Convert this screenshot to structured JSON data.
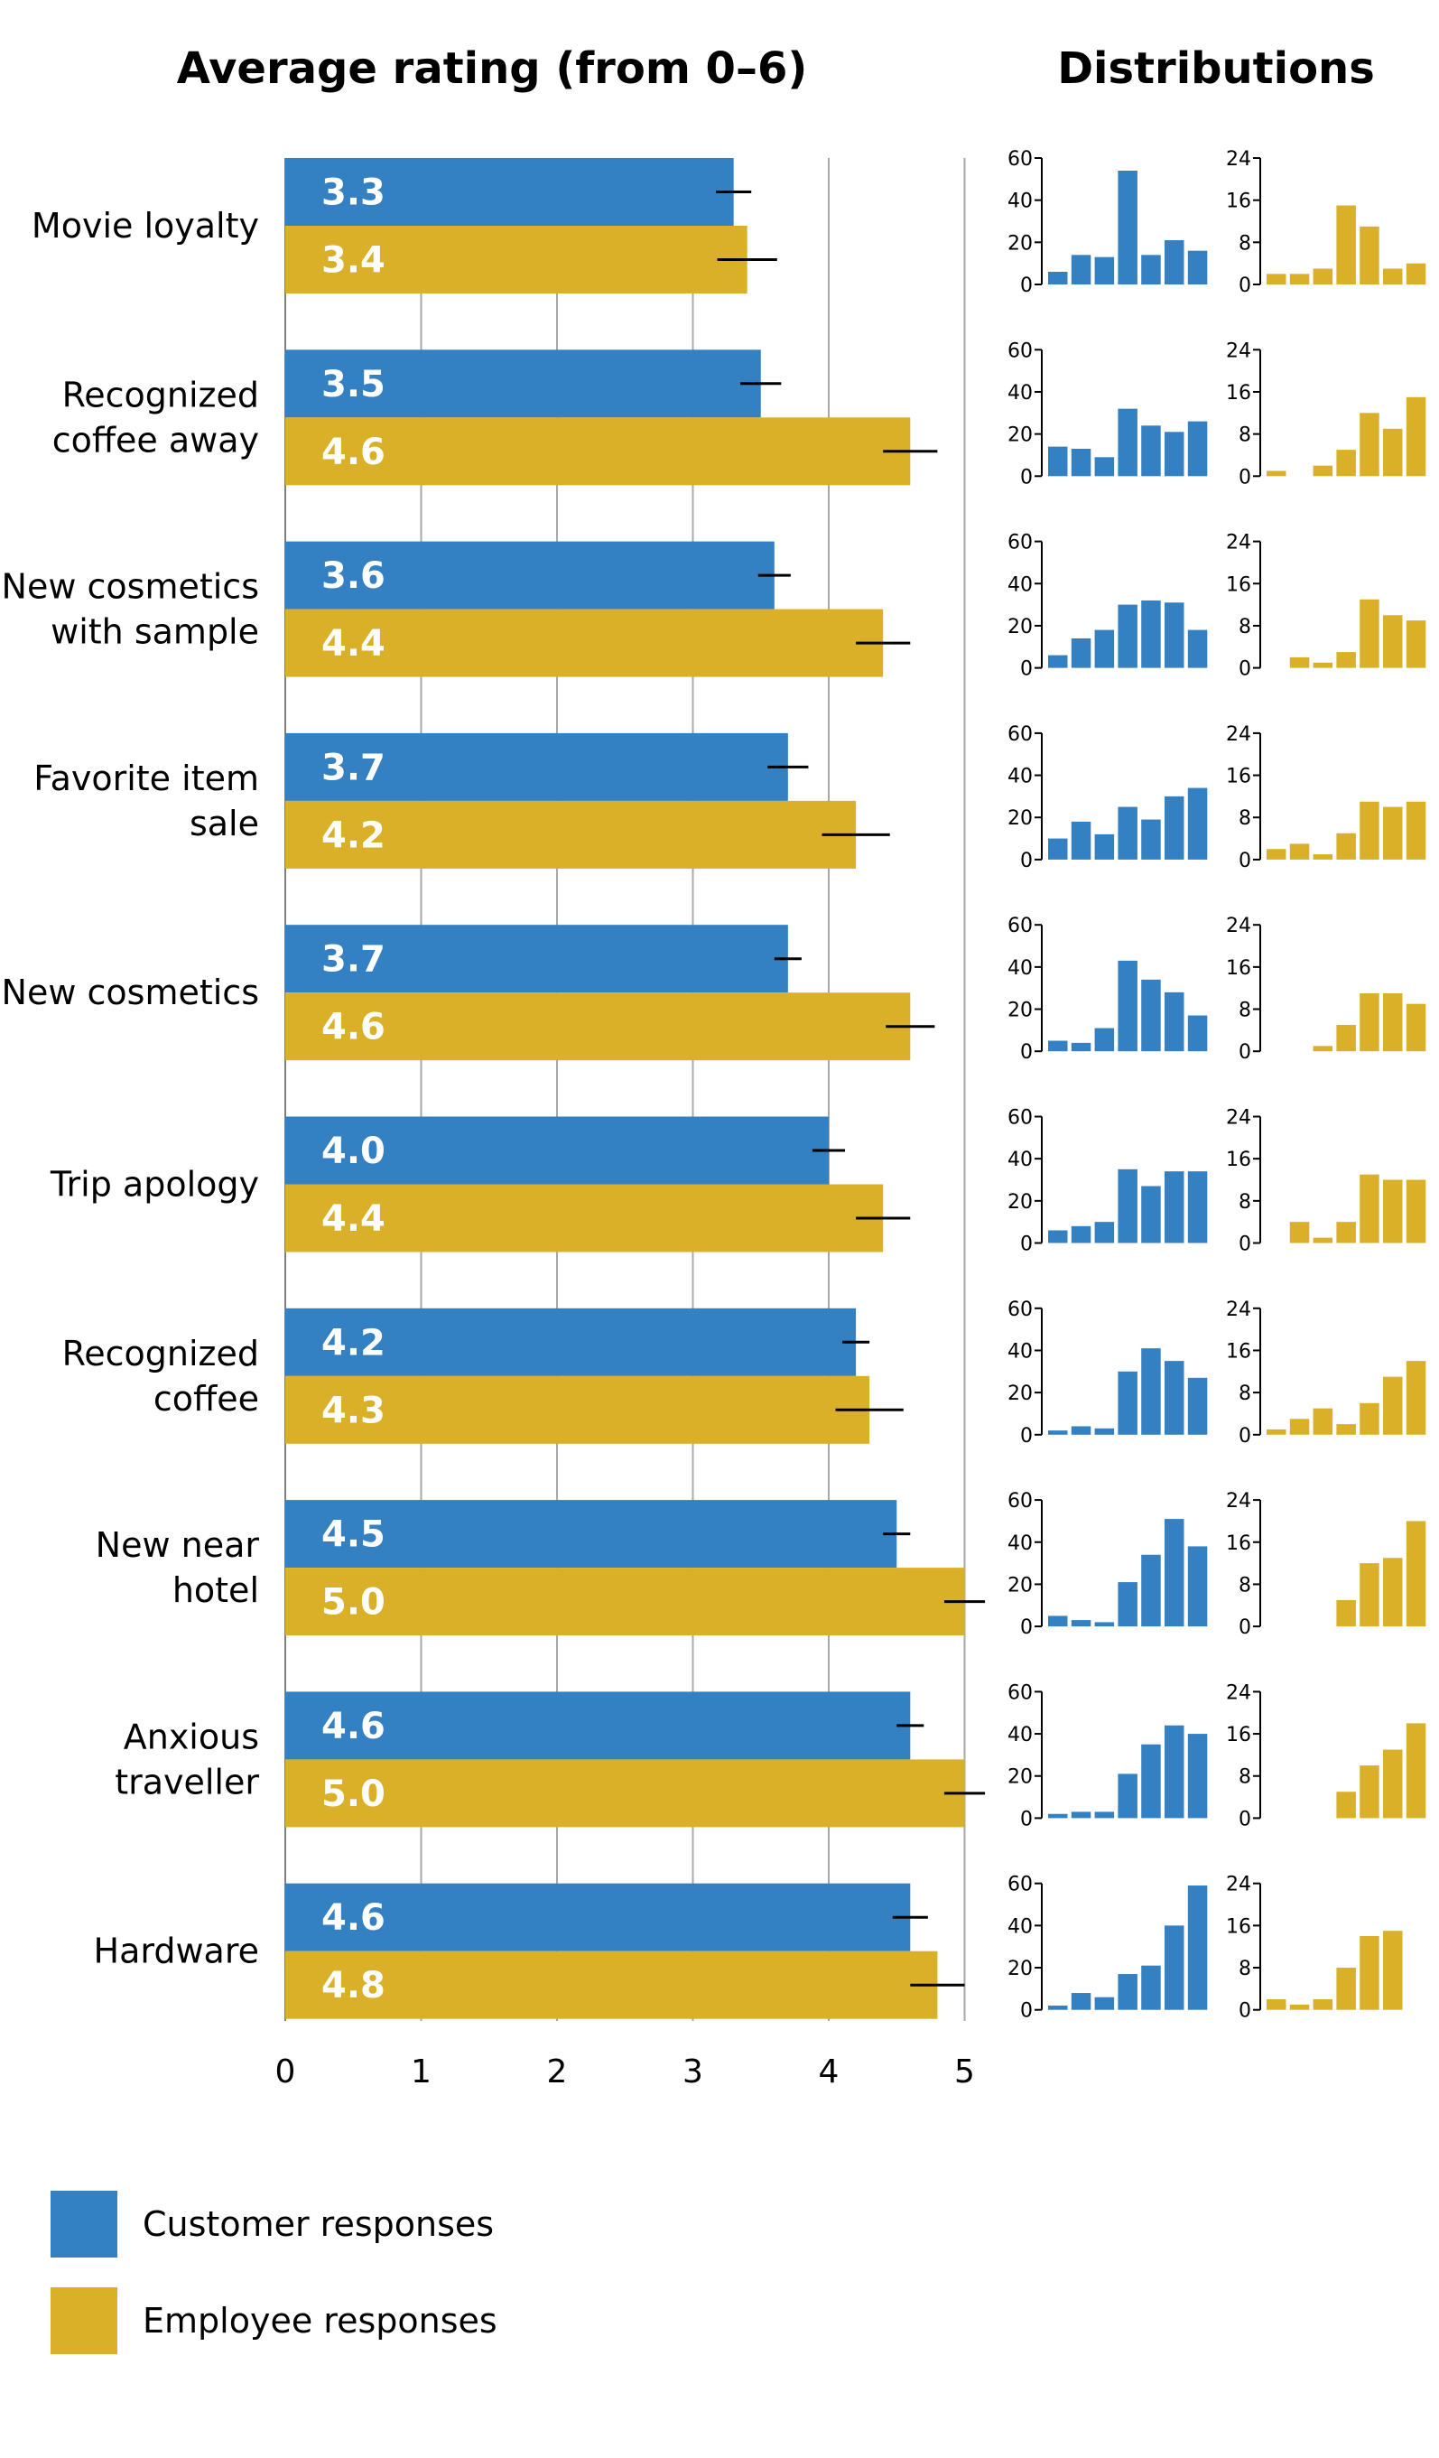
{
  "colors": {
    "customer": "#3380c2",
    "employee": "#dab029",
    "grid": "#a8a8a8",
    "axis": "#7f7f7f",
    "error": "#000000"
  },
  "chart_data": {
    "type": "bar",
    "title": "Average rating (from 0–6)",
    "distributions_title": "Distributions",
    "x_ticks": [
      "0",
      "1",
      "2",
      "3",
      "4",
      "5"
    ],
    "xlim": [
      0,
      5
    ],
    "dist_customer_ticks": [
      "60",
      "40",
      "20",
      "0"
    ],
    "dist_customer_ylim": [
      0,
      60
    ],
    "dist_employee_ticks": [
      "24",
      "16",
      "8",
      "0"
    ],
    "dist_employee_ylim": [
      0,
      24
    ],
    "series": [
      {
        "name": "Customer responses",
        "key": "customer"
      },
      {
        "name": "Employee responses",
        "key": "employee"
      }
    ],
    "categories": [
      {
        "label": [
          "Movie loyalty"
        ],
        "customer": {
          "mean": 3.3,
          "label": "3.3",
          "err": [
            3.17,
            3.43
          ],
          "dist": [
            6,
            14,
            13,
            54,
            14,
            21,
            16
          ]
        },
        "employee": {
          "mean": 3.4,
          "label": "3.4",
          "err": [
            3.18,
            3.62
          ],
          "dist": [
            2,
            2,
            3,
            15,
            11,
            3,
            4
          ]
        }
      },
      {
        "label": [
          "Recognized",
          "coffee away"
        ],
        "customer": {
          "mean": 3.5,
          "label": "3.5",
          "err": [
            3.35,
            3.65
          ],
          "dist": [
            14,
            13,
            9,
            32,
            24,
            21,
            26
          ]
        },
        "employee": {
          "mean": 4.6,
          "label": "4.6",
          "err": [
            4.4,
            4.8
          ],
          "dist": [
            1,
            0,
            2,
            5,
            12,
            9,
            15
          ]
        }
      },
      {
        "label": [
          "New cosmetics",
          "with sample"
        ],
        "customer": {
          "mean": 3.6,
          "label": "3.6",
          "err": [
            3.48,
            3.72
          ],
          "dist": [
            6,
            14,
            18,
            30,
            32,
            31,
            18
          ]
        },
        "employee": {
          "mean": 4.4,
          "label": "4.4",
          "err": [
            4.2,
            4.6
          ],
          "dist": [
            0,
            2,
            1,
            3,
            13,
            10,
            9
          ]
        }
      },
      {
        "label": [
          "Favorite item",
          "sale"
        ],
        "customer": {
          "mean": 3.7,
          "label": "3.7",
          "err": [
            3.55,
            3.85
          ],
          "dist": [
            10,
            18,
            12,
            25,
            19,
            30,
            34
          ]
        },
        "employee": {
          "mean": 4.2,
          "label": "4.2",
          "err": [
            3.95,
            4.45
          ],
          "dist": [
            2,
            3,
            1,
            5,
            11,
            10,
            11
          ]
        }
      },
      {
        "label": [
          "New cosmetics"
        ],
        "customer": {
          "mean": 3.7,
          "label": "3.7",
          "err": [
            3.6,
            3.8
          ],
          "dist": [
            5,
            4,
            11,
            43,
            34,
            28,
            17
          ]
        },
        "employee": {
          "mean": 4.6,
          "label": "4.6",
          "err": [
            4.42,
            4.78
          ],
          "dist": [
            0,
            0,
            1,
            5,
            11,
            11,
            9
          ]
        }
      },
      {
        "label": [
          "Trip apology"
        ],
        "customer": {
          "mean": 4.0,
          "label": "4.0",
          "err": [
            3.88,
            4.12
          ],
          "dist": [
            6,
            8,
            10,
            35,
            27,
            34,
            34
          ]
        },
        "employee": {
          "mean": 4.4,
          "label": "4.4",
          "err": [
            4.2,
            4.6
          ],
          "dist": [
            0,
            4,
            1,
            4,
            13,
            12,
            12
          ]
        }
      },
      {
        "label": [
          "Recognized",
          "coffee"
        ],
        "customer": {
          "mean": 4.2,
          "label": "4.2",
          "err": [
            4.1,
            4.3
          ],
          "dist": [
            2,
            4,
            3,
            30,
            41,
            35,
            27
          ]
        },
        "employee": {
          "mean": 4.3,
          "label": "4.3",
          "err": [
            4.05,
            4.55
          ],
          "dist": [
            1,
            3,
            5,
            2,
            6,
            11,
            14
          ]
        }
      },
      {
        "label": [
          "New near",
          "hotel"
        ],
        "customer": {
          "mean": 4.5,
          "label": "4.5",
          "err": [
            4.4,
            4.6
          ],
          "dist": [
            5,
            3,
            2,
            21,
            34,
            51,
            38
          ]
        },
        "employee": {
          "mean": 5.0,
          "label": "5.0",
          "err": [
            4.85,
            5.15
          ],
          "dist": [
            0,
            0,
            0,
            5,
            12,
            13,
            20
          ]
        }
      },
      {
        "label": [
          "Anxious",
          "traveller"
        ],
        "customer": {
          "mean": 4.6,
          "label": "4.6",
          "err": [
            4.5,
            4.7
          ],
          "dist": [
            2,
            3,
            3,
            21,
            35,
            44,
            40
          ]
        },
        "employee": {
          "mean": 5.0,
          "label": "5.0",
          "err": [
            4.85,
            5.15
          ],
          "dist": [
            0,
            0,
            0,
            5,
            10,
            13,
            18
          ]
        }
      },
      {
        "label": [
          "Hardware"
        ],
        "customer": {
          "mean": 4.6,
          "label": "4.6",
          "err": [
            4.47,
            4.73
          ],
          "dist": [
            2,
            8,
            6,
            17,
            21,
            40,
            59
          ]
        },
        "employee": {
          "mean": 4.8,
          "label": "4.8",
          "err": [
            4.6,
            5.0
          ],
          "dist": [
            2,
            1,
            2,
            8,
            14,
            15,
            0
          ]
        }
      }
    ]
  }
}
